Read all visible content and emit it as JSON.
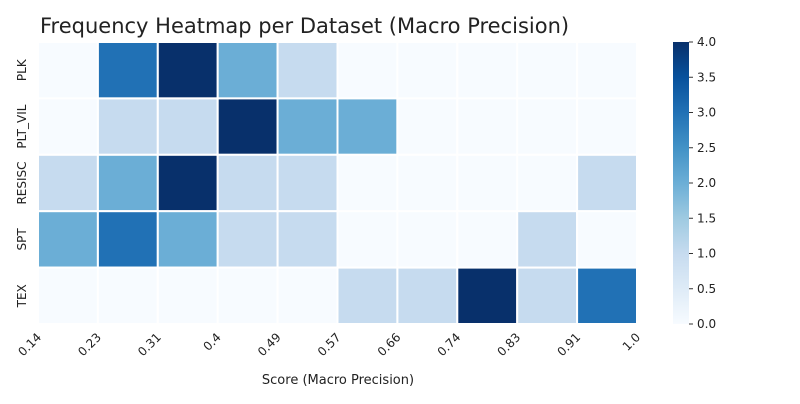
{
  "chart_data": {
    "type": "heatmap",
    "title": "Frequency Heatmap per Dataset (Macro Precision)",
    "xlabel": "Score (Macro Precision)",
    "ylabel": "",
    "x_tick_labels": [
      "0.14",
      "0.23",
      "0.31",
      "0.4",
      "0.49",
      "0.57",
      "0.66",
      "0.74",
      "0.83",
      "0.91",
      "1.0"
    ],
    "rows": [
      "PLK",
      "PLT_VIL",
      "RESISC",
      "SPT",
      "TEX"
    ],
    "values": [
      [
        0,
        3,
        4,
        2,
        1,
        0,
        0,
        0,
        0,
        0
      ],
      [
        0,
        1,
        1,
        4,
        2,
        2,
        0,
        0,
        0,
        0
      ],
      [
        1,
        2,
        4,
        1,
        1,
        0,
        0,
        0,
        0,
        1
      ],
      [
        2,
        3,
        2,
        1,
        1,
        0,
        0,
        0,
        1,
        0
      ],
      [
        0,
        0,
        0,
        0,
        0,
        1,
        1,
        4,
        1,
        3
      ]
    ],
    "colorbar": {
      "min": 0,
      "max": 4,
      "ticks": [
        "0.0",
        "0.5",
        "1.0",
        "1.5",
        "2.0",
        "2.5",
        "3.0",
        "3.5",
        "4.0"
      ],
      "colormap": "Blues"
    },
    "colors": {
      "0": "#f7fbff",
      "1": "#c6dbef",
      "2": "#6baed6",
      "3": "#2171b5",
      "4": "#08306b"
    }
  }
}
